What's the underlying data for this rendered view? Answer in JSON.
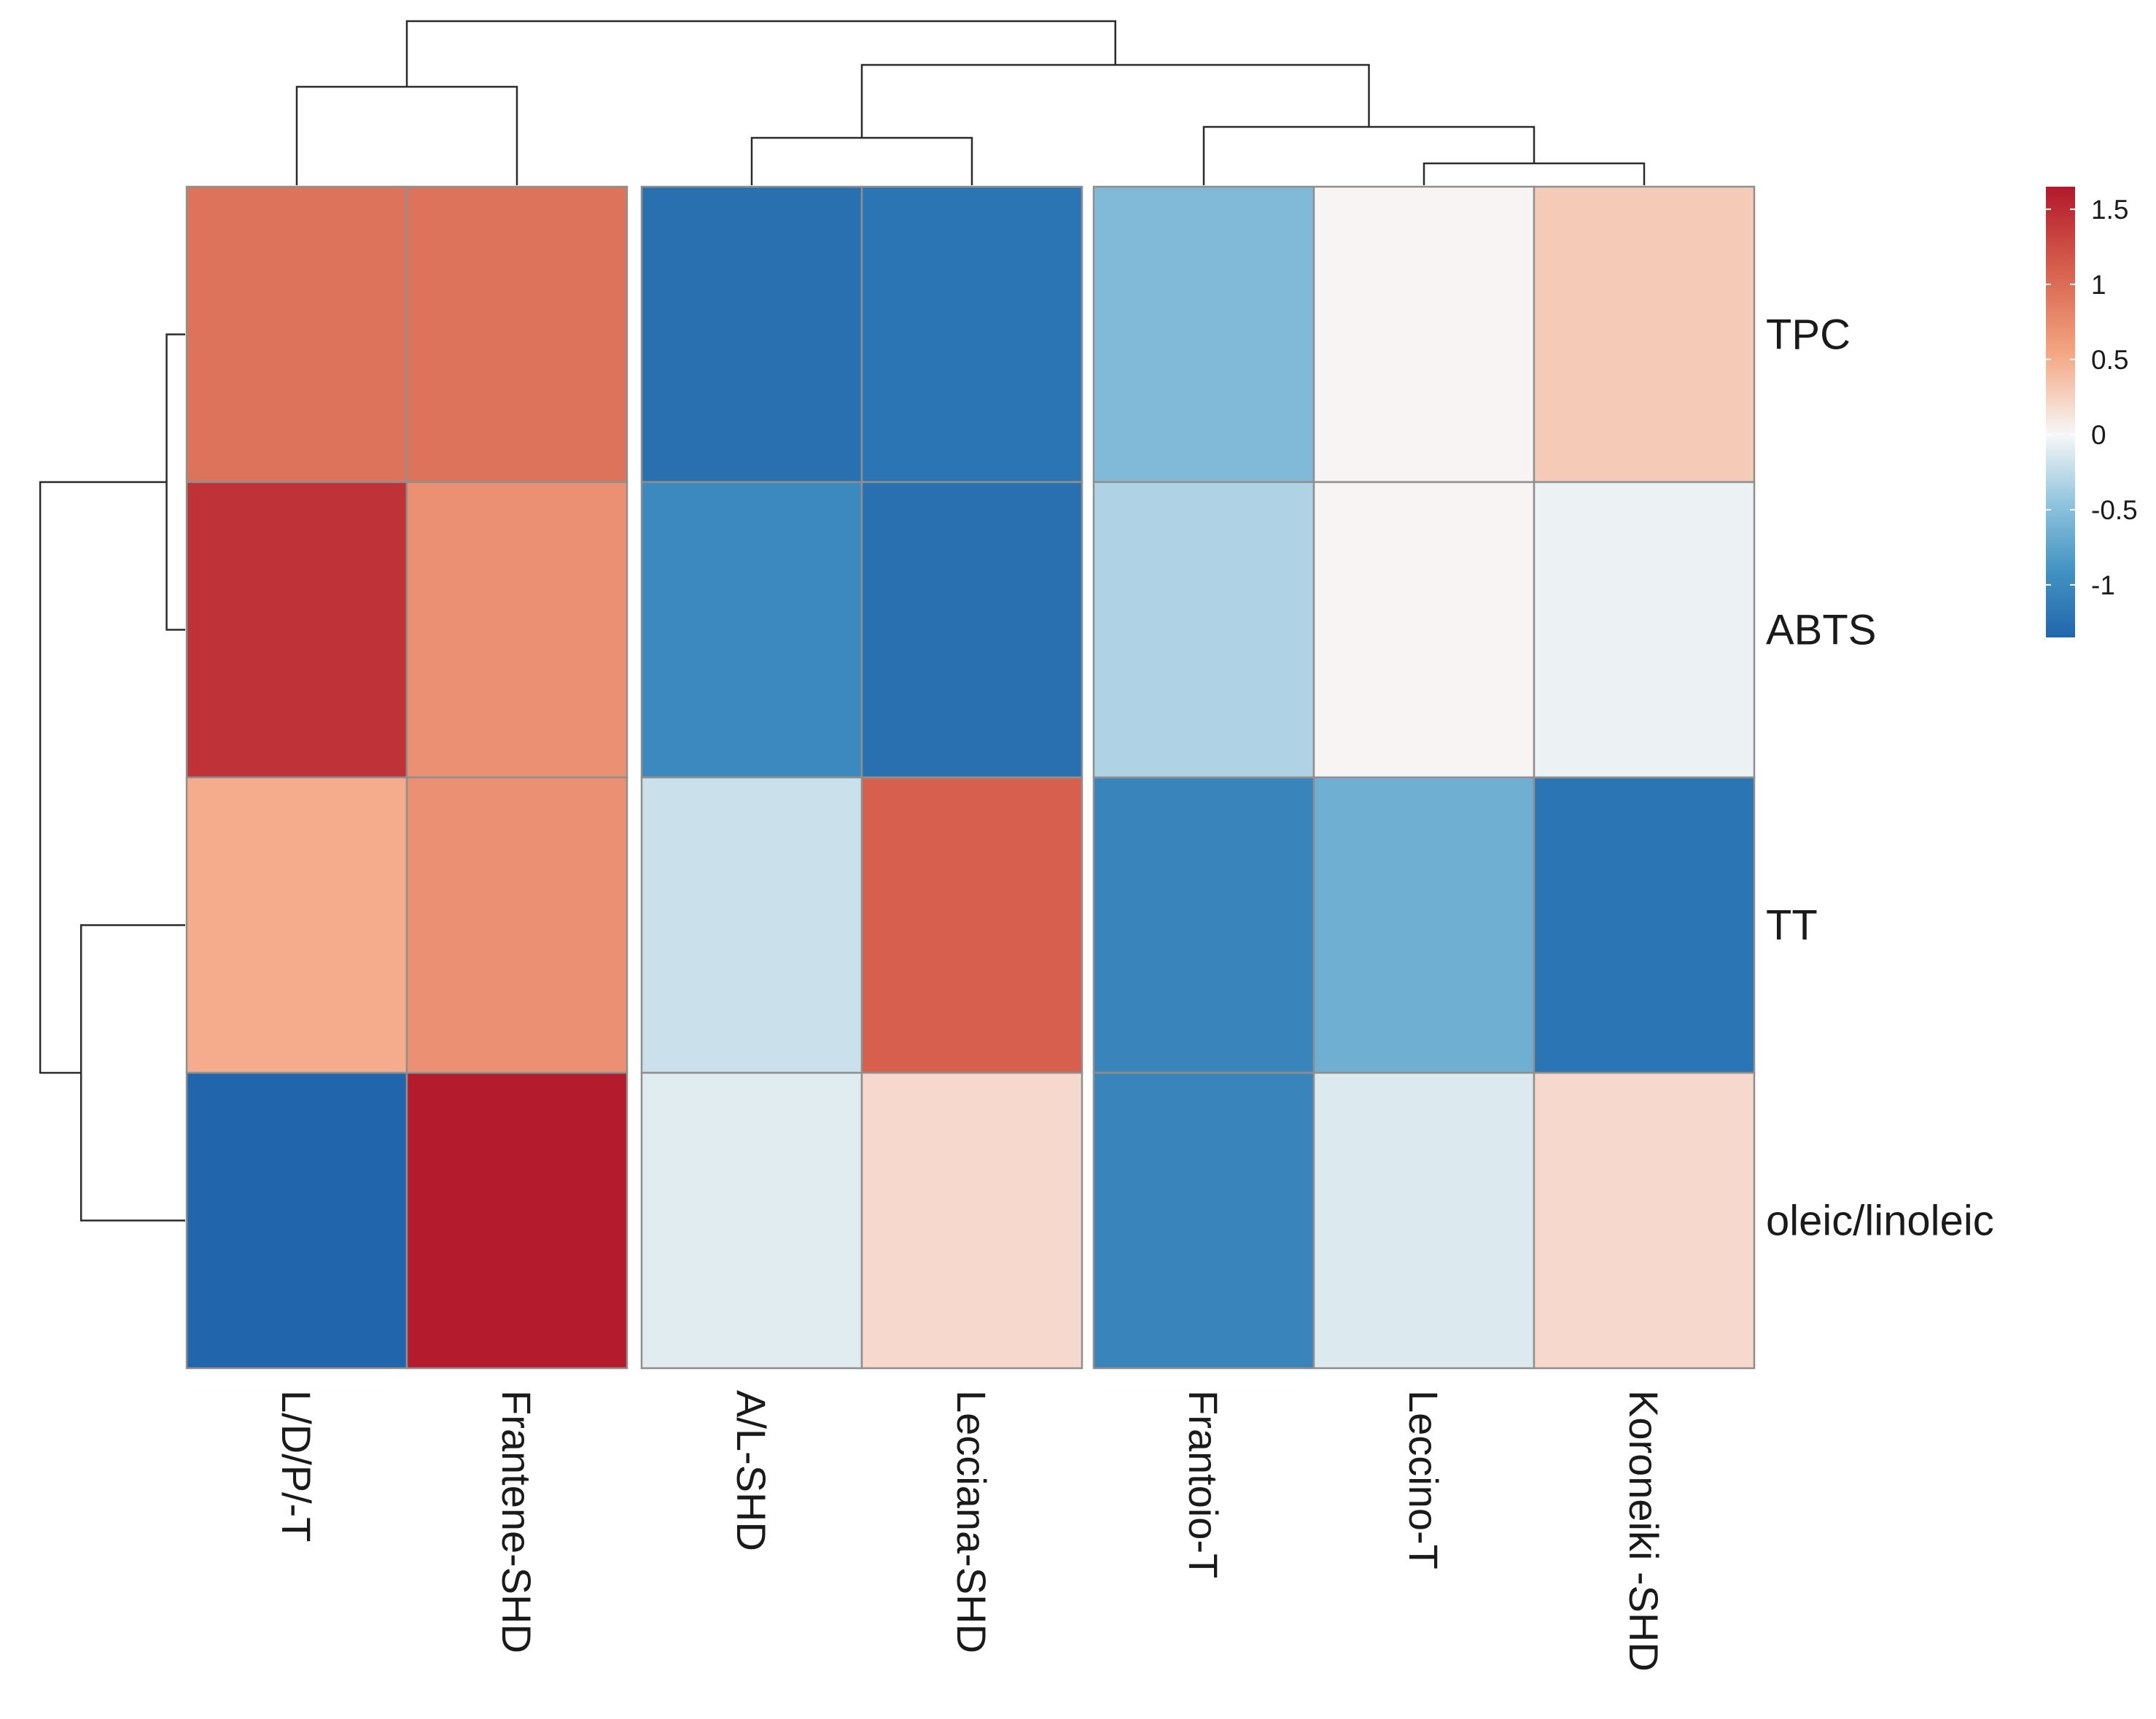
{
  "chart_data": {
    "type": "heatmap",
    "title": "",
    "rows": [
      "TPC",
      "ABTS",
      "TT",
      "oleic/linoleic"
    ],
    "columns": [
      "L/D/P/-T",
      "Frantene-SHD",
      "A/L-SHD",
      "Lecciana-SHD",
      "Frantoio-T",
      "Leccino-T",
      "Koroneiki -SHD"
    ],
    "column_groups": [
      [
        0,
        1
      ],
      [
        2,
        3
      ],
      [
        4,
        5,
        6
      ]
    ],
    "values": [
      [
        0.95,
        0.95,
        -1.25,
        -1.2,
        -0.55,
        0.02,
        0.3
      ],
      [
        1.45,
        0.72,
        -1.0,
        -1.25,
        -0.32,
        0.02,
        -0.05
      ],
      [
        0.5,
        0.72,
        -0.2,
        1.1,
        -1.05,
        -0.65,
        -1.2
      ],
      [
        -1.35,
        1.62,
        -0.1,
        0.2,
        -1.05,
        -0.12,
        0.2
      ]
    ],
    "color_scale": {
      "range": [
        -1.35,
        1.65
      ],
      "stops": [
        {
          "value": -1.35,
          "color": "#2166ac"
        },
        {
          "value": -0.9,
          "color": "#4393c3"
        },
        {
          "value": -0.45,
          "color": "#92c5de"
        },
        {
          "value": 0.0,
          "color": "#f7f7f7"
        },
        {
          "value": 0.55,
          "color": "#f4a582"
        },
        {
          "value": 1.1,
          "color": "#d6604d"
        },
        {
          "value": 1.65,
          "color": "#b2182b"
        }
      ]
    },
    "legend": {
      "ticks": [
        1.5,
        1,
        0.5,
        0,
        -0.5,
        -1
      ],
      "tick_labels": [
        "1.5",
        "1",
        "0.5",
        "0",
        "-0.5",
        "-1"
      ],
      "position": "top-right"
    },
    "column_dendrogram": {
      "merges": [
        {
          "left": "Leccino-T",
          "right": "Koroneiki -SHD",
          "height": 0.6
        },
        {
          "left": "Frantoio-T",
          "right": "merge-0",
          "height": 1.6
        },
        {
          "left": "A/L-SHD",
          "right": "Lecciana-SHD",
          "height": 1.3
        },
        {
          "left": "merge-2",
          "right": "merge-1",
          "height": 3.3
        },
        {
          "left": "L/D/P/-T",
          "right": "Frantene-SHD",
          "height": 2.7
        },
        {
          "left": "merge-4",
          "right": "merge-3",
          "height": 4.5
        }
      ]
    },
    "row_dendrogram": {
      "merges": [
        {
          "left": "TPC",
          "right": "ABTS",
          "height": 0.5
        },
        {
          "left": "TT",
          "right": "oleic/linoleic",
          "height": 2.8
        },
        {
          "left": "merge-0",
          "right": "merge-1",
          "height": 3.9
        }
      ]
    }
  }
}
